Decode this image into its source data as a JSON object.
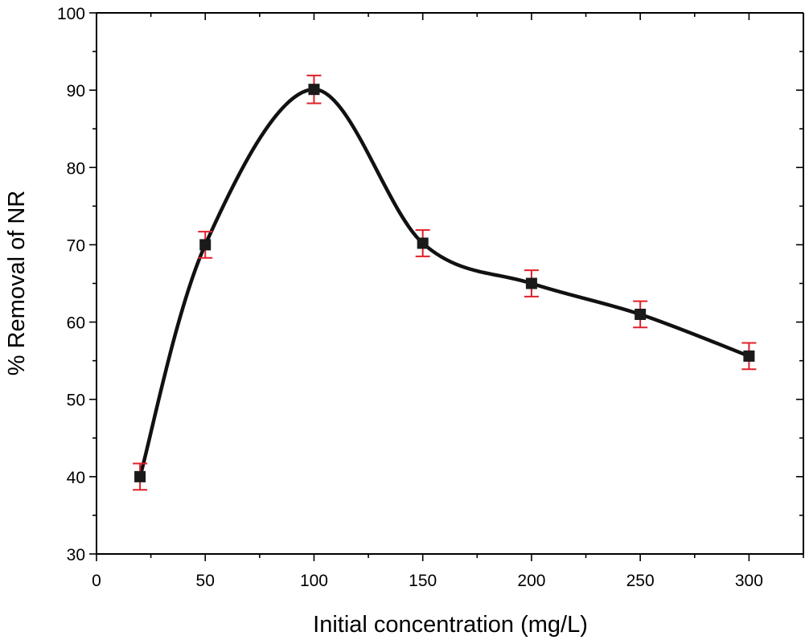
{
  "chart_data": {
    "type": "line",
    "title": "",
    "xlabel": "Initial concentration (mg/L)",
    "ylabel": "% Removal of NR",
    "xlim": [
      0,
      325
    ],
    "ylim": [
      30,
      100
    ],
    "x_ticks": [
      0,
      50,
      100,
      150,
      200,
      250,
      300
    ],
    "x_minor_step": 25,
    "y_ticks": [
      30,
      40,
      50,
      60,
      70,
      80,
      90,
      100
    ],
    "y_minor_step": 5,
    "grid": false,
    "series": [
      {
        "name": "% Removal of NR",
        "marker": "square",
        "x": [
          20,
          50,
          100,
          150,
          200,
          250,
          300
        ],
        "y": [
          40,
          70,
          90.1,
          70.2,
          65,
          61,
          55.6
        ],
        "error": [
          1.7,
          1.7,
          1.8,
          1.7,
          1.7,
          1.7,
          1.7
        ]
      }
    ],
    "colors": {
      "line": "#111111",
      "marker": "#1a1a1a",
      "error_bar": "#e0202a",
      "axis": "#000000"
    }
  }
}
